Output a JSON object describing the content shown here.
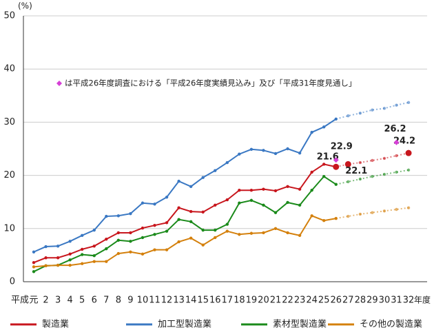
{
  "chart_data": {
    "type": "line",
    "y_unit_label": "(%)",
    "x_prefix_label": "平成",
    "x_suffix_label": "年度",
    "categories": [
      "元",
      "2",
      "3",
      "4",
      "5",
      "6",
      "7",
      "8",
      "9",
      "10",
      "11",
      "12",
      "13",
      "14",
      "15",
      "16",
      "17",
      "18",
      "19",
      "20",
      "21",
      "22",
      "23",
      "24",
      "25",
      "26",
      "27",
      "28",
      "29",
      "30",
      "31",
      "32"
    ],
    "dashed_from": "26",
    "ylim": [
      0,
      50
    ],
    "yticks": [
      0,
      10,
      20,
      30,
      40,
      50
    ],
    "grid": true,
    "legend": "bottom",
    "series": [
      {
        "name": "製造業",
        "color": "#c8161d",
        "values": [
          3.6,
          4.5,
          4.5,
          5.2,
          6.1,
          6.7,
          8.0,
          9.2,
          9.2,
          10.1,
          10.6,
          11.1,
          13.9,
          13.2,
          13.1,
          14.4,
          15.4,
          17.2,
          17.2,
          17.4,
          17.1,
          17.9,
          17.4,
          20.6,
          22.1,
          21.6,
          22.1,
          22.4,
          22.8,
          23.2,
          23.7,
          24.2
        ],
        "value_labels": [
          null,
          null,
          null,
          null,
          null,
          null,
          null,
          null,
          null,
          null,
          null,
          null,
          null,
          null,
          null,
          null,
          null,
          null,
          null,
          null,
          null,
          null,
          null,
          null,
          null,
          "21.6",
          "22.1",
          null,
          null,
          null,
          null,
          "24.2"
        ]
      },
      {
        "name": "加工型製造業",
        "color": "#3a78c3",
        "values": [
          5.6,
          6.6,
          6.7,
          7.6,
          8.7,
          9.7,
          12.3,
          12.4,
          12.8,
          14.8,
          14.6,
          15.9,
          18.9,
          17.9,
          19.6,
          20.9,
          22.4,
          24.0,
          24.9,
          24.7,
          24.1,
          25.0,
          24.2,
          28.1,
          29.1,
          30.6,
          31.2,
          31.7,
          32.3,
          32.6,
          33.2,
          33.7
        ]
      },
      {
        "name": "素材型製造業",
        "color": "#1a8a1a",
        "values": [
          1.9,
          3.0,
          3.1,
          4.1,
          5.1,
          4.9,
          6.2,
          7.8,
          7.6,
          8.3,
          8.9,
          9.5,
          11.7,
          11.3,
          9.7,
          9.7,
          10.8,
          14.8,
          15.3,
          14.4,
          13.0,
          14.9,
          14.4,
          17.2,
          19.8,
          18.3,
          18.8,
          19.3,
          19.8,
          20.2,
          20.6,
          21.0
        ]
      },
      {
        "name": "その他の製造業",
        "color": "#d4800c",
        "values": [
          2.8,
          3.0,
          3.1,
          3.1,
          3.4,
          3.8,
          3.8,
          5.3,
          5.6,
          5.2,
          6.0,
          6.0,
          7.5,
          8.2,
          6.9,
          8.3,
          9.5,
          8.9,
          9.1,
          9.2,
          10.0,
          9.2,
          8.7,
          12.4,
          11.5,
          11.9,
          12.3,
          12.7,
          13.0,
          13.3,
          13.6,
          13.9
        ]
      }
    ],
    "estimates": {
      "name": "は平成26年度調査における「平成26年度実績見込み」及び「平成31年度見通し」",
      "color": "#d63fd6",
      "values": [
        null,
        null,
        null,
        null,
        null,
        null,
        null,
        null,
        null,
        null,
        null,
        null,
        null,
        null,
        null,
        null,
        null,
        null,
        null,
        null,
        null,
        null,
        null,
        null,
        null,
        22.9,
        null,
        null,
        null,
        null,
        26.2,
        null
      ],
      "value_labels": [
        null,
        null,
        null,
        null,
        null,
        null,
        null,
        null,
        null,
        null,
        null,
        null,
        null,
        null,
        null,
        null,
        null,
        null,
        null,
        null,
        null,
        null,
        null,
        null,
        null,
        "22.9",
        null,
        null,
        null,
        null,
        "26.2",
        null
      ]
    }
  }
}
